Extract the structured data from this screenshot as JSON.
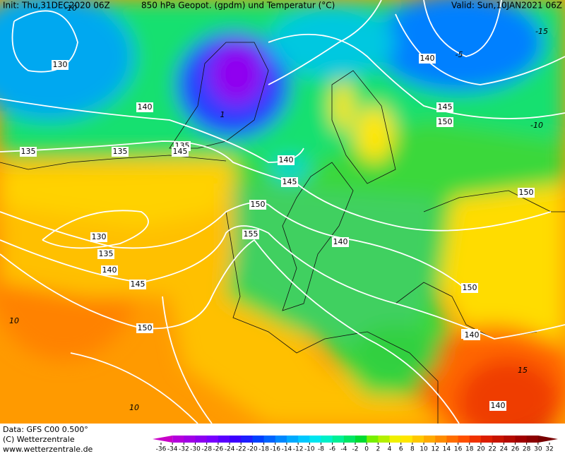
{
  "header": {
    "init": "Init: Thu,31DEC2020 06Z",
    "title": "850 hPa Geopot. (gpdm) und Temperatur (°C)",
    "valid": "Valid: Sun,10JAN2021 06Z"
  },
  "footer": {
    "data": "Data: GFS C00 0.500°",
    "copyright": "(C) Wetterzentrale",
    "url": "www.wetterzentrale.de"
  },
  "colorbar": {
    "ticks": [
      "-36",
      "-34",
      "-32",
      "-30",
      "-28",
      "-26",
      "-24",
      "-22",
      "-20",
      "-18",
      "-16",
      "-14",
      "-12",
      "-10",
      "-8",
      "-6",
      "-4",
      "-2",
      "0",
      "2",
      "4",
      "6",
      "8",
      "10",
      "12",
      "14",
      "16",
      "18",
      "20",
      "22",
      "24",
      "26",
      "28",
      "30",
      "32"
    ],
    "colors": [
      "#c800c8",
      "#b400dc",
      "#a000e6",
      "#8c00f0",
      "#7800ff",
      "#5a00ff",
      "#3c00ff",
      "#1e1eff",
      "#0040ff",
      "#0064ff",
      "#0088ff",
      "#00aaff",
      "#00c8ff",
      "#00e6f0",
      "#00f0c8",
      "#00f096",
      "#00e664",
      "#00dc32",
      "#78f000",
      "#b4f000",
      "#f0f000",
      "#ffe600",
      "#ffc800",
      "#ffaa00",
      "#ff8c00",
      "#ff6e00",
      "#ff5000",
      "#f03200",
      "#dc1e00",
      "#c81400",
      "#b40a00",
      "#a00000",
      "#8c0000",
      "#780000"
    ]
  },
  "contour_labels": [
    "130",
    "140",
    "135",
    "135",
    "135",
    "140",
    "145",
    "150",
    "155",
    "140",
    "150",
    "145",
    "150",
    "140",
    "130",
    "135",
    "140",
    "145",
    "150",
    "155",
    "150",
    "140",
    "145",
    "140",
    "-10",
    "-15",
    "-5",
    "-10",
    "10",
    "15",
    "10",
    "1"
  ]
}
